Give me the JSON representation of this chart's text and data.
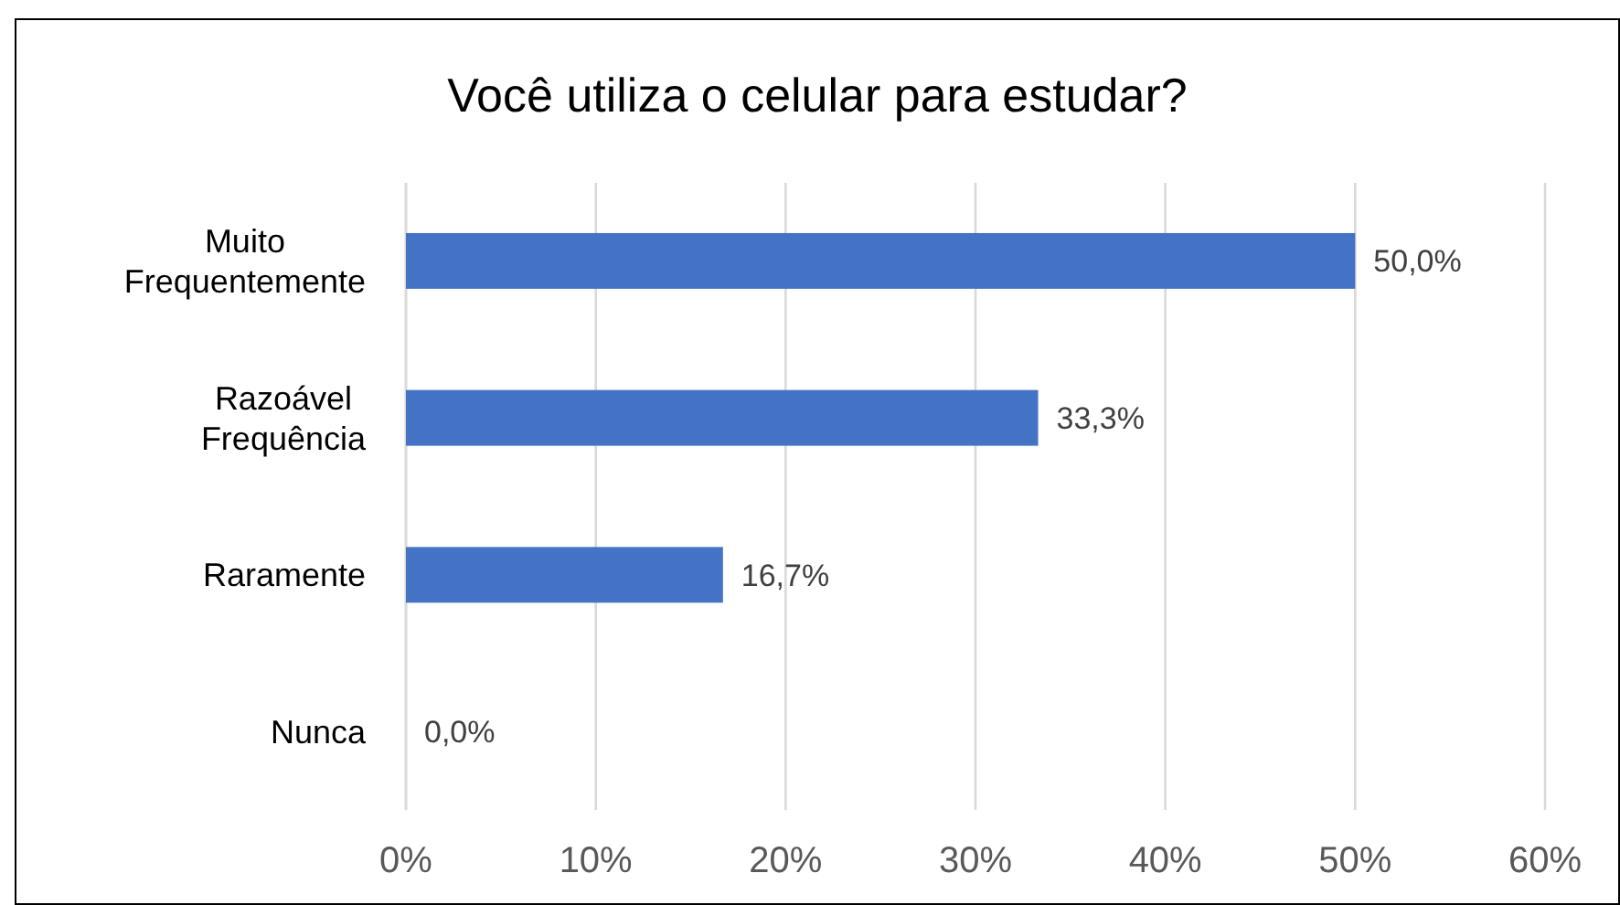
{
  "chart_data": {
    "type": "bar",
    "orientation": "horizontal",
    "title": "Você utiliza o celular para estudar?",
    "categories": [
      "Muito Frequentemente",
      "Razoável Frequência",
      "Raramente",
      "Nunca"
    ],
    "values": [
      50,
      33.3,
      16.7,
      0
    ],
    "value_labels": [
      "50,0%",
      "33,3%",
      "16,7%",
      "0,0%"
    ],
    "color": "#4472c4",
    "xlim": [
      0,
      60
    ],
    "xticks": [
      {
        "value": 0,
        "label": "0%"
      },
      {
        "value": 10,
        "label": "10%"
      },
      {
        "value": 20,
        "label": "20%"
      },
      {
        "value": 30,
        "label": "30%"
      },
      {
        "value": 40,
        "label": "40%"
      },
      {
        "value": 50,
        "label": "50%"
      },
      {
        "value": 60,
        "label": "60%"
      }
    ],
    "grid": "x"
  }
}
